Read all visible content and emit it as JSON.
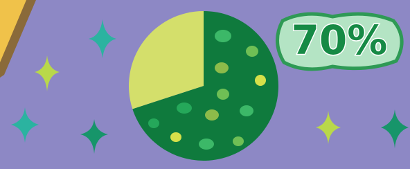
{
  "chart_data": {
    "type": "pie",
    "values": [
      70,
      30
    ],
    "value_labels": [
      "70%",
      null
    ],
    "colors": [
      "#0f7a3d",
      "#d4df6b"
    ]
  }
}
